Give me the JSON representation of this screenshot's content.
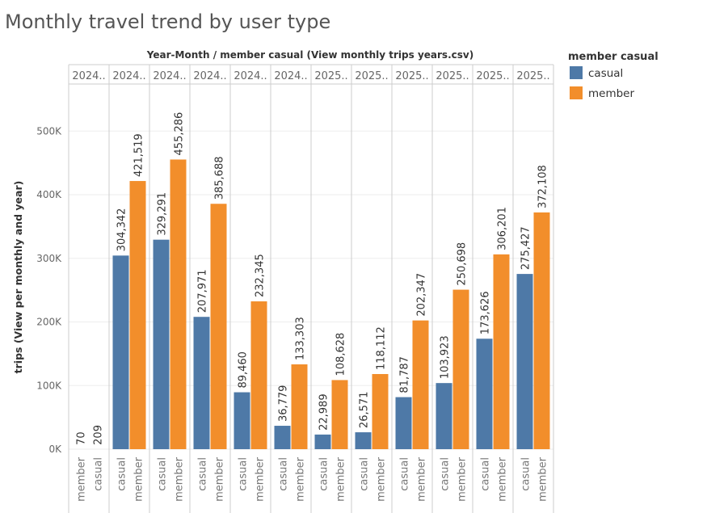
{
  "chart_data": {
    "type": "bar",
    "title": "Monthly travel trend by user type",
    "column_header": "Year-Month  /  member casual (View monthly trips years.csv)",
    "ylabel": "trips (View per monthly and year)",
    "ylim": [
      0,
      560000
    ],
    "yticks": [
      0,
      100000,
      200000,
      300000,
      400000,
      500000
    ],
    "ytick_labels": [
      "0K",
      "100K",
      "200K",
      "300K",
      "400K",
      "500K"
    ],
    "legend": {
      "title": "member casual",
      "position": "top-right",
      "items": [
        {
          "label": "casual",
          "color": "#4e79a7"
        },
        {
          "label": "member",
          "color": "#f28e2b"
        }
      ]
    },
    "groups": [
      {
        "label": "2024..",
        "bars": [
          {
            "type": "member",
            "value": 70,
            "label": "70"
          },
          {
            "type": "casual",
            "value": 209,
            "label": "209"
          }
        ]
      },
      {
        "label": "2024..",
        "bars": [
          {
            "type": "casual",
            "value": 304342,
            "label": "304,342"
          },
          {
            "type": "member",
            "value": 421519,
            "label": "421,519"
          }
        ]
      },
      {
        "label": "2024..",
        "bars": [
          {
            "type": "casual",
            "value": 329291,
            "label": "329,291"
          },
          {
            "type": "member",
            "value": 455286,
            "label": "455,286"
          }
        ]
      },
      {
        "label": "2024..",
        "bars": [
          {
            "type": "casual",
            "value": 207971,
            "label": "207,971"
          },
          {
            "type": "member",
            "value": 385688,
            "label": "385,688"
          }
        ]
      },
      {
        "label": "2024..",
        "bars": [
          {
            "type": "casual",
            "value": 89460,
            "label": "89,460"
          },
          {
            "type": "member",
            "value": 232345,
            "label": "232,345"
          }
        ]
      },
      {
        "label": "2024..",
        "bars": [
          {
            "type": "casual",
            "value": 36779,
            "label": "36,779"
          },
          {
            "type": "member",
            "value": 133303,
            "label": "133,303"
          }
        ]
      },
      {
        "label": "2025..",
        "bars": [
          {
            "type": "casual",
            "value": 22989,
            "label": "22,989"
          },
          {
            "type": "member",
            "value": 108628,
            "label": "108,628"
          }
        ]
      },
      {
        "label": "2025..",
        "bars": [
          {
            "type": "casual",
            "value": 26571,
            "label": "26,571"
          },
          {
            "type": "member",
            "value": 118112,
            "label": "118,112"
          }
        ]
      },
      {
        "label": "2025..",
        "bars": [
          {
            "type": "casual",
            "value": 81787,
            "label": "81,787"
          },
          {
            "type": "member",
            "value": 202347,
            "label": "202,347"
          }
        ]
      },
      {
        "label": "2025..",
        "bars": [
          {
            "type": "casual",
            "value": 103923,
            "label": "103,923"
          },
          {
            "type": "member",
            "value": 250698,
            "label": "250,698"
          }
        ]
      },
      {
        "label": "2025..",
        "bars": [
          {
            "type": "casual",
            "value": 173626,
            "label": "173,626"
          },
          {
            "type": "member",
            "value": 306201,
            "label": "306,201"
          }
        ]
      },
      {
        "label": "2025..",
        "bars": [
          {
            "type": "casual",
            "value": 275427,
            "label": "275,427"
          },
          {
            "type": "member",
            "value": 372108,
            "label": "372,108"
          }
        ]
      }
    ]
  }
}
